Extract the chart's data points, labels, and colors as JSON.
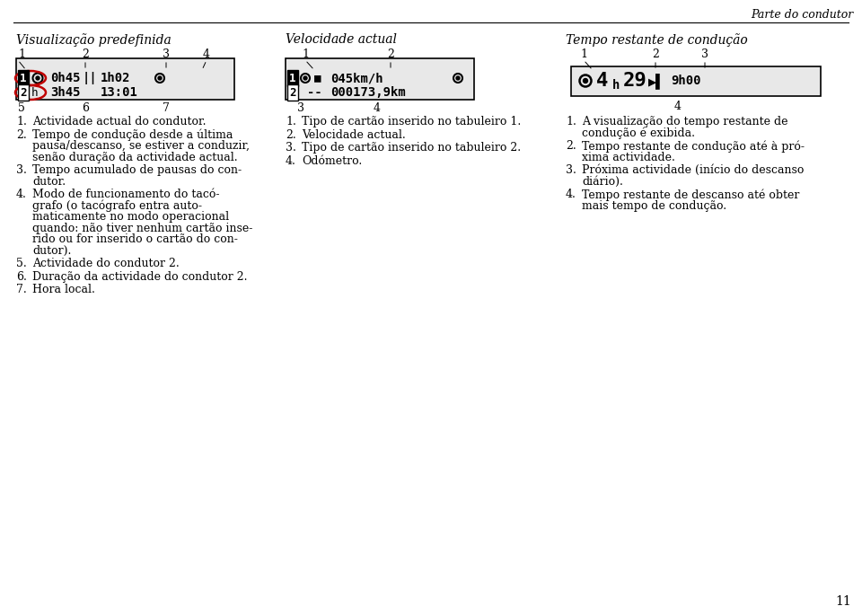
{
  "bg_color": "#ffffff",
  "header_text": "Parte do condutor",
  "col1_title": "Visualização predefinida",
  "col2_title": "Velocidade actual",
  "col3_title": "Tempo restante de condução",
  "col1_items": [
    "Actividade actual do condutor.",
    "Tempo de condução desde a última\npausa/descanso, se estiver a conduzir,\nsenão duração da actividade actual.",
    "Tempo acumulado de pausas do con-\ndutor.",
    "Modo de funcionamento do tacó-\ngrafo (o tacógrafo entra auto-\nmaticamente no modo operacional\nquando: não tiver nenhum cartão inse-\nrido ou for inserido o cartão do con-\ndutor).",
    "Actividade do condutor 2.",
    "Duração da actividade do condutor 2.",
    "Hora local."
  ],
  "col2_items": [
    "Tipo de cartão inserido no tabuleiro 1.",
    "Velocidade actual.",
    "Tipo de cartão inserido no tabuleiro 2.",
    "Odómetro."
  ],
  "col3_items": [
    "A visualização do tempo restante de\ncondução é exibida.",
    "Tempo restante de condução até à pró-\nxima actividade.",
    "Próxima actividade (início do descanso\ndiário).",
    "Tempo restante de descanso até obter\nmais tempo de condução."
  ],
  "page_num": "11"
}
